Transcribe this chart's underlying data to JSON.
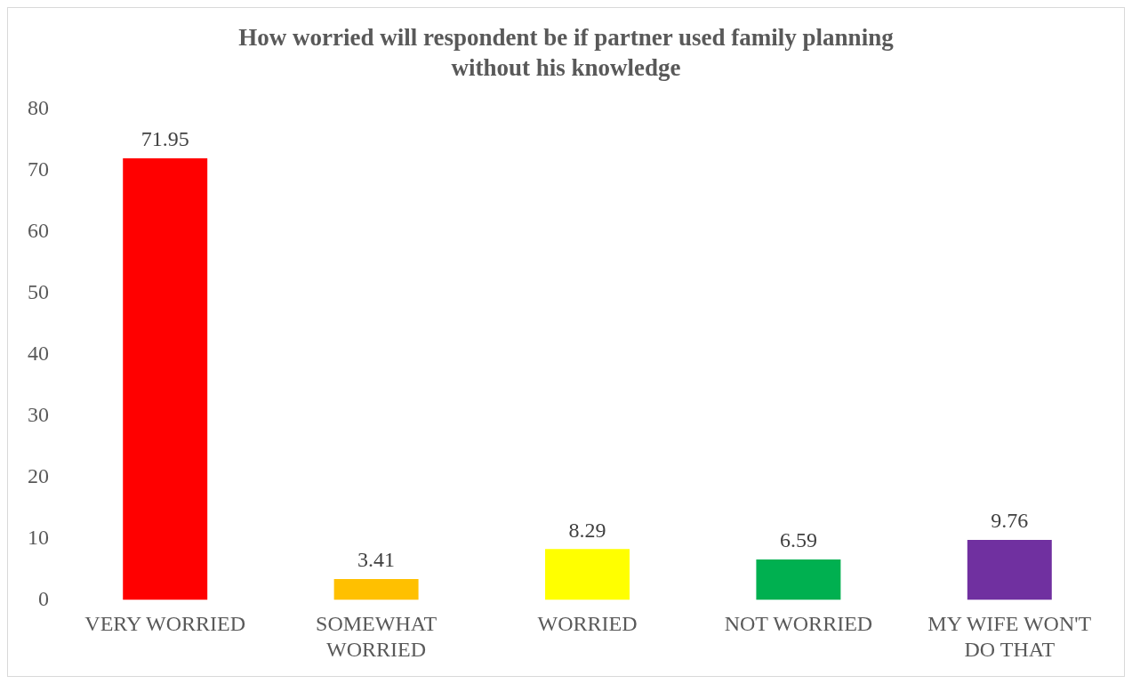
{
  "chart_data": {
    "type": "bar",
    "title": "How worried will respondent be if partner used family planning without his knowledge",
    "categories": [
      "VERY WORRIED",
      "SOMEWHAT WORRIED",
      "WORRIED",
      "NOT WORRIED",
      "MY WIFE WON'T DO THAT"
    ],
    "values": [
      71.95,
      3.41,
      8.29,
      6.59,
      9.76
    ],
    "colors": [
      "#ff0000",
      "#ffc000",
      "#ffff00",
      "#00b050",
      "#7030a0"
    ],
    "ylim": [
      0,
      80
    ],
    "yticks": [
      0,
      10,
      20,
      30,
      40,
      50,
      60,
      70,
      80
    ],
    "grid": false,
    "legend": false,
    "data_labels": true
  }
}
